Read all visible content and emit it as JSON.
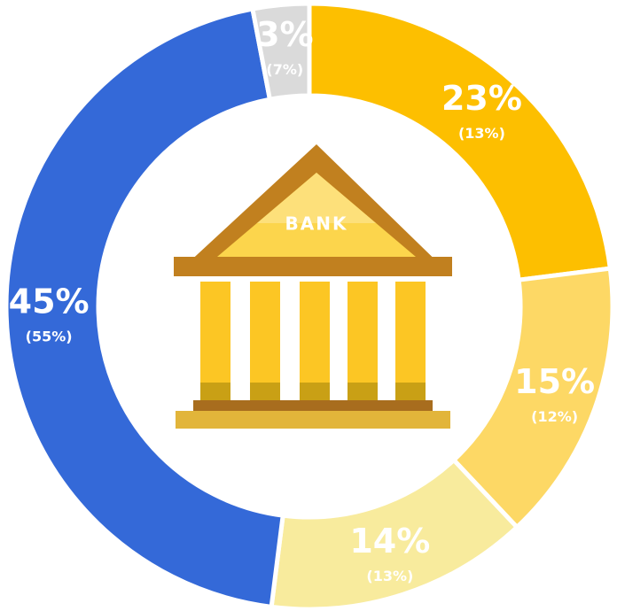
{
  "chart_data": {
    "type": "pie",
    "donut": true,
    "values": [
      23,
      15,
      14,
      45,
      3
    ],
    "value_labels": [
      "23%",
      "15%",
      "14%",
      "45%",
      "3%"
    ],
    "secondary_labels": [
      "(13%)",
      "(12%)",
      "(13%)",
      "(55%)",
      "(7%)"
    ],
    "colors": [
      "#fdbf00",
      "#fdd865",
      "#f8eb9d",
      "#3469d8",
      "#dadada"
    ],
    "icon_label": "BANK"
  }
}
